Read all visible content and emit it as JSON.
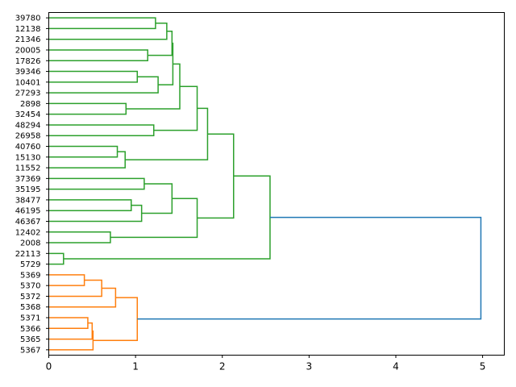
{
  "chart_data": {
    "type": "dendrogram",
    "orientation": "right",
    "xlim": [
      0,
      5.25
    ],
    "xticks": [
      "0",
      "1",
      "2",
      "3",
      "4",
      "5"
    ],
    "leaves": [
      "39780",
      "12138",
      "21346",
      "20005",
      "17826",
      "39346",
      "10401",
      "27293",
      "2898",
      "32454",
      "48294",
      "26958",
      "40760",
      "15130",
      "11552",
      "37369",
      "35195",
      "38477",
      "46195",
      "46367",
      "12402",
      "2008",
      "22113",
      "5729",
      "5369",
      "5370",
      "5372",
      "5368",
      "5371",
      "5366",
      "5365",
      "5367"
    ],
    "colors": {
      "green_cluster": "#2ca02c",
      "orange_cluster": "#ff7f0e",
      "root": "#1f77b4"
    },
    "merges": [
      {
        "a": "39780",
        "b": "12138",
        "height": 1.23,
        "color": "green_cluster"
      },
      {
        "a": "m0",
        "b": "21346",
        "height": 1.36,
        "color": "green_cluster"
      },
      {
        "a": "20005",
        "b": "17826",
        "height": 1.14,
        "color": "green_cluster"
      },
      {
        "a": "m1",
        "b": "m2",
        "height": 1.42,
        "color": "green_cluster"
      },
      {
        "a": "39346",
        "b": "10401",
        "height": 1.02,
        "color": "green_cluster"
      },
      {
        "a": "m4",
        "b": "27293",
        "height": 1.26,
        "color": "green_cluster"
      },
      {
        "a": "m3",
        "b": "m5",
        "height": 1.43,
        "color": "green_cluster"
      },
      {
        "a": "2898",
        "b": "32454",
        "height": 0.89,
        "color": "green_cluster"
      },
      {
        "a": "m6",
        "b": "m7",
        "height": 1.51,
        "color": "green_cluster"
      },
      {
        "a": "48294",
        "b": "26958",
        "height": 1.21,
        "color": "green_cluster"
      },
      {
        "a": "m8",
        "b": "m9",
        "height": 1.71,
        "color": "green_cluster"
      },
      {
        "a": "40760",
        "b": "15130",
        "height": 0.79,
        "color": "green_cluster"
      },
      {
        "a": "m11",
        "b": "11552",
        "height": 0.88,
        "color": "green_cluster"
      },
      {
        "a": "m10",
        "b": "m12",
        "height": 1.83,
        "color": "green_cluster"
      },
      {
        "a": "37369",
        "b": "35195",
        "height": 1.1,
        "color": "green_cluster"
      },
      {
        "a": "38477",
        "b": "46195",
        "height": 0.95,
        "color": "green_cluster"
      },
      {
        "a": "m15",
        "b": "46367",
        "height": 1.07,
        "color": "green_cluster"
      },
      {
        "a": "m14",
        "b": "m16",
        "height": 1.42,
        "color": "green_cluster"
      },
      {
        "a": "12402",
        "b": "2008",
        "height": 0.71,
        "color": "green_cluster"
      },
      {
        "a": "m17",
        "b": "m18",
        "height": 1.71,
        "color": "green_cluster"
      },
      {
        "a": "m13",
        "b": "m19",
        "height": 2.13,
        "color": "green_cluster"
      },
      {
        "a": "22113",
        "b": "5729",
        "height": 0.17,
        "color": "green_cluster"
      },
      {
        "a": "m20",
        "b": "m21",
        "height": 2.55,
        "color": "green_cluster"
      },
      {
        "a": "5369",
        "b": "5370",
        "height": 0.41,
        "color": "orange_cluster"
      },
      {
        "a": "m23",
        "b": "5372",
        "height": 0.61,
        "color": "orange_cluster"
      },
      {
        "a": "m24",
        "b": "5368",
        "height": 0.77,
        "color": "orange_cluster"
      },
      {
        "a": "5371",
        "b": "5366",
        "height": 0.45,
        "color": "orange_cluster"
      },
      {
        "a": "m26",
        "b": "5365",
        "height": 0.5,
        "color": "orange_cluster"
      },
      {
        "a": "m27",
        "b": "5367",
        "height": 0.51,
        "color": "orange_cluster"
      },
      {
        "a": "m25",
        "b": "m28",
        "height": 1.02,
        "color": "orange_cluster"
      },
      {
        "a": "m22",
        "b": "m29",
        "height": 4.98,
        "color": "root"
      }
    ]
  }
}
